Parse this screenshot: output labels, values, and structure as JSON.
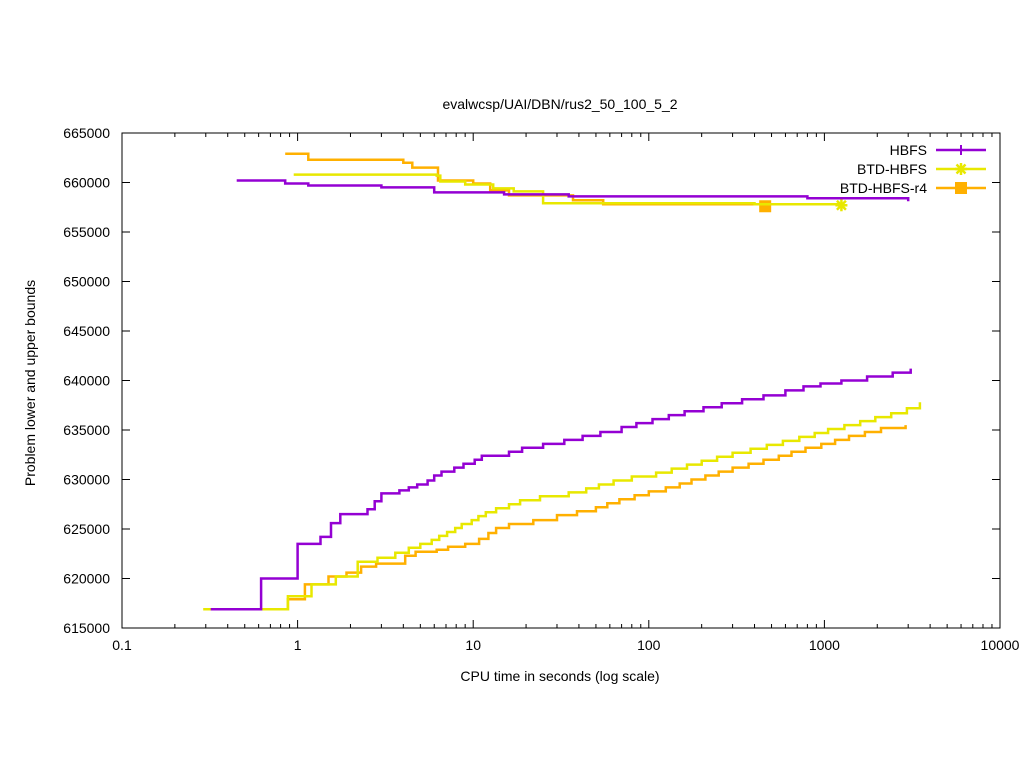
{
  "chart_data": {
    "type": "line",
    "title": "evalwcsp/UAI/DBN/rus2_50_100_5_2",
    "xlabel": "CPU time in seconds (log scale)",
    "ylabel": "Problem lower and upper bounds",
    "xscale": "log",
    "xlim": [
      0.1,
      10000
    ],
    "ylim": [
      615000,
      665000
    ],
    "xticks": [
      0.1,
      1,
      10,
      100,
      1000,
      10000
    ],
    "xtick_labels": [
      "0.1",
      "1",
      "10",
      "100",
      "1000",
      "10000"
    ],
    "yticks": [
      615000,
      620000,
      625000,
      630000,
      635000,
      640000,
      645000,
      650000,
      655000,
      660000,
      665000
    ],
    "ytick_labels": [
      "615000",
      "620000",
      "625000",
      "630000",
      "635000",
      "640000",
      "645000",
      "650000",
      "655000",
      "660000",
      "665000"
    ],
    "legend_position": "top-right",
    "grid": false,
    "series": [
      {
        "name": "HBFS",
        "color": "#9400d3",
        "marker": "plus",
        "upper": [
          [
            0.45,
            660200
          ],
          [
            0.85,
            659900
          ],
          [
            1.15,
            659700
          ],
          [
            3.0,
            659500
          ],
          [
            6.0,
            659000
          ],
          [
            15,
            658800
          ],
          [
            35,
            658600
          ],
          [
            800,
            658400
          ],
          [
            3000,
            658100
          ]
        ],
        "lower": [
          [
            0.32,
            616900
          ],
          [
            0.62,
            620000
          ],
          [
            1.0,
            623500
          ],
          [
            1.35,
            624200
          ],
          [
            1.55,
            625600
          ],
          [
            1.75,
            626500
          ],
          [
            2.5,
            627000
          ],
          [
            2.75,
            627800
          ],
          [
            3.0,
            628600
          ],
          [
            3.8,
            628900
          ],
          [
            4.3,
            629200
          ],
          [
            4.8,
            629500
          ],
          [
            5.5,
            629900
          ],
          [
            6.0,
            630400
          ],
          [
            6.6,
            630800
          ],
          [
            7.8,
            631200
          ],
          [
            8.8,
            631600
          ],
          [
            10.2,
            632000
          ],
          [
            11.2,
            632400
          ],
          [
            16,
            632800
          ],
          [
            19,
            633200
          ],
          [
            25,
            633600
          ],
          [
            33,
            634000
          ],
          [
            42,
            634400
          ],
          [
            53,
            634800
          ],
          [
            70,
            635300
          ],
          [
            85,
            635700
          ],
          [
            105,
            636100
          ],
          [
            130,
            636500
          ],
          [
            160,
            636900
          ],
          [
            205,
            637300
          ],
          [
            260,
            637700
          ],
          [
            340,
            638100
          ],
          [
            450,
            638500
          ],
          [
            600,
            639000
          ],
          [
            760,
            639400
          ],
          [
            950,
            639700
          ],
          [
            1250,
            640000
          ],
          [
            1750,
            640400
          ],
          [
            2450,
            640800
          ],
          [
            3100,
            641200
          ]
        ]
      },
      {
        "name": "BTD-HBFS",
        "color": "#e8e800",
        "marker": "star",
        "upper": [
          [
            0.95,
            660800
          ],
          [
            6.2,
            660700
          ],
          [
            6.5,
            660100
          ],
          [
            9,
            659800
          ],
          [
            13,
            659400
          ],
          [
            17,
            659100
          ],
          [
            25,
            657900
          ],
          [
            400,
            657800
          ],
          [
            1250,
            657700
          ]
        ],
        "lower": [
          [
            0.29,
            616900
          ],
          [
            0.88,
            618200
          ],
          [
            1.2,
            619400
          ],
          [
            1.65,
            620200
          ],
          [
            2.2,
            621700
          ],
          [
            2.85,
            622100
          ],
          [
            3.6,
            622600
          ],
          [
            4.3,
            623100
          ],
          [
            5.0,
            623500
          ],
          [
            5.8,
            623900
          ],
          [
            6.4,
            624300
          ],
          [
            7.1,
            624700
          ],
          [
            7.9,
            625100
          ],
          [
            8.6,
            625500
          ],
          [
            9.8,
            625900
          ],
          [
            10.7,
            626300
          ],
          [
            11.8,
            626700
          ],
          [
            13.5,
            627100
          ],
          [
            16,
            627500
          ],
          [
            18.5,
            627900
          ],
          [
            24,
            628300
          ],
          [
            35,
            628700
          ],
          [
            44,
            629100
          ],
          [
            52,
            629500
          ],
          [
            63,
            629900
          ],
          [
            80,
            630300
          ],
          [
            110,
            630700
          ],
          [
            135,
            631100
          ],
          [
            165,
            631500
          ],
          [
            200,
            631900
          ],
          [
            245,
            632300
          ],
          [
            300,
            632700
          ],
          [
            380,
            633100
          ],
          [
            470,
            633500
          ],
          [
            580,
            633900
          ],
          [
            720,
            634300
          ],
          [
            880,
            634700
          ],
          [
            1050,
            635100
          ],
          [
            1300,
            635500
          ],
          [
            1600,
            635900
          ],
          [
            1950,
            636300
          ],
          [
            2400,
            636700
          ],
          [
            2950,
            637200
          ],
          [
            3500,
            637800
          ]
        ]
      },
      {
        "name": "BTD-HBFS-r4",
        "color": "#ffb000",
        "marker": "square",
        "upper": [
          [
            0.85,
            662900
          ],
          [
            1.15,
            662300
          ],
          [
            4.0,
            662000
          ],
          [
            4.5,
            661500
          ],
          [
            6.3,
            660200
          ],
          [
            10,
            659900
          ],
          [
            12.5,
            659200
          ],
          [
            16,
            658700
          ],
          [
            37,
            658200
          ],
          [
            55,
            657800
          ],
          [
            460,
            657600
          ]
        ],
        "lower": [
          [
            0.32,
            616900
          ],
          [
            0.88,
            617900
          ],
          [
            1.1,
            619400
          ],
          [
            1.5,
            620200
          ],
          [
            1.9,
            620600
          ],
          [
            2.3,
            621200
          ],
          [
            2.8,
            621500
          ],
          [
            4.1,
            622300
          ],
          [
            4.7,
            622700
          ],
          [
            6.2,
            622900
          ],
          [
            7.2,
            623200
          ],
          [
            9.0,
            623500
          ],
          [
            10.8,
            624000
          ],
          [
            12.2,
            624600
          ],
          [
            13.5,
            625100
          ],
          [
            16,
            625500
          ],
          [
            22,
            625900
          ],
          [
            30,
            626400
          ],
          [
            39,
            626800
          ],
          [
            50,
            627200
          ],
          [
            58,
            627600
          ],
          [
            68,
            628000
          ],
          [
            83,
            628400
          ],
          [
            100,
            628800
          ],
          [
            125,
            629200
          ],
          [
            150,
            629600
          ],
          [
            175,
            630000
          ],
          [
            210,
            630400
          ],
          [
            250,
            630800
          ],
          [
            300,
            631200
          ],
          [
            370,
            631600
          ],
          [
            450,
            632000
          ],
          [
            550,
            632400
          ],
          [
            650,
            632800
          ],
          [
            780,
            633200
          ],
          [
            960,
            633600
          ],
          [
            1150,
            634000
          ],
          [
            1380,
            634400
          ],
          [
            1700,
            634800
          ],
          [
            2100,
            635200
          ],
          [
            2900,
            635500
          ]
        ]
      }
    ]
  }
}
